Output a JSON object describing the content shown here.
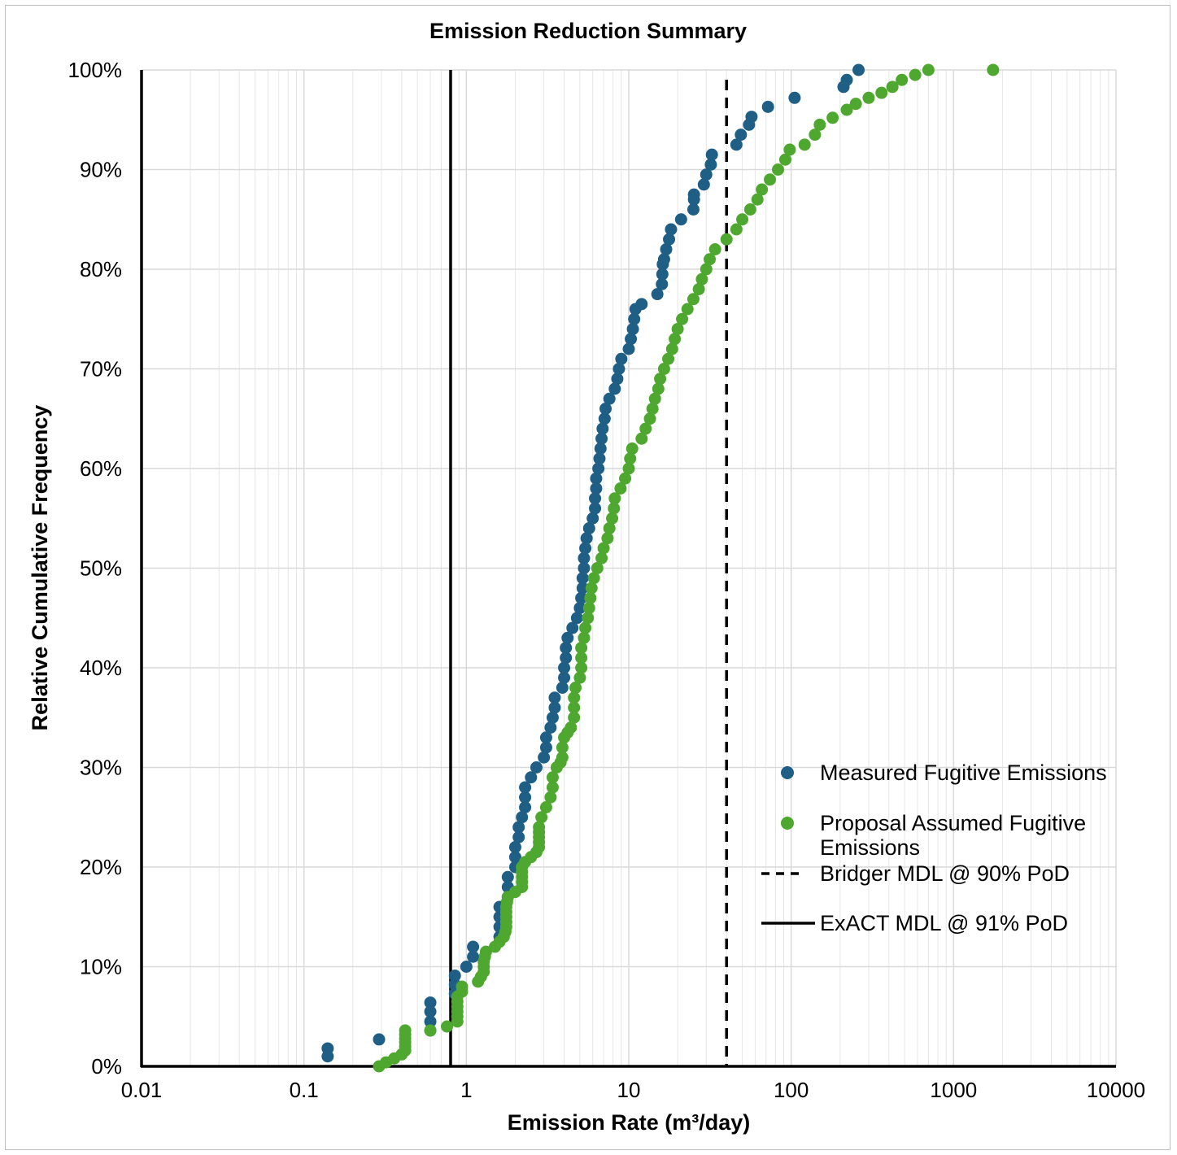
{
  "chart_data": {
    "type": "scatter",
    "title": "Emission Reduction Summary",
    "xlabel": "Emission Rate (m³/day)",
    "ylabel": "Relative Cumulative Frequency",
    "x_scale": "log",
    "xlim": [
      0.01,
      10000
    ],
    "ylim": [
      0,
      1
    ],
    "x_ticks": [
      "0.01",
      "0.1",
      "1",
      "10",
      "100",
      "1000",
      "10000"
    ],
    "y_ticks": [
      "0%",
      "10%",
      "20%",
      "30%",
      "40%",
      "50%",
      "60%",
      "70%",
      "80%",
      "90%",
      "100%"
    ],
    "grid": true,
    "legend": "right",
    "series": [
      {
        "name": "Measured Fugitive Emissions",
        "color": "#1f5f86",
        "points": [
          [
            0.14,
            0.01
          ],
          [
            0.14,
            0.018
          ],
          [
            0.29,
            0.027
          ],
          [
            0.6,
            0.036
          ],
          [
            0.6,
            0.045
          ],
          [
            0.6,
            0.055
          ],
          [
            0.6,
            0.064
          ],
          [
            0.85,
            0.073
          ],
          [
            0.85,
            0.082
          ],
          [
            0.85,
            0.091
          ],
          [
            1.0,
            0.1
          ],
          [
            1.1,
            0.11
          ],
          [
            1.1,
            0.12
          ],
          [
            1.6,
            0.13
          ],
          [
            1.6,
            0.14
          ],
          [
            1.6,
            0.15
          ],
          [
            1.6,
            0.16
          ],
          [
            1.8,
            0.17
          ],
          [
            1.8,
            0.18
          ],
          [
            1.8,
            0.19
          ],
          [
            2.0,
            0.2
          ],
          [
            2.0,
            0.21
          ],
          [
            2.0,
            0.22
          ],
          [
            2.1,
            0.23
          ],
          [
            2.1,
            0.24
          ],
          [
            2.2,
            0.25
          ],
          [
            2.3,
            0.26
          ],
          [
            2.3,
            0.27
          ],
          [
            2.3,
            0.28
          ],
          [
            2.5,
            0.29
          ],
          [
            2.7,
            0.3
          ],
          [
            3.0,
            0.31
          ],
          [
            3.1,
            0.32
          ],
          [
            3.1,
            0.33
          ],
          [
            3.3,
            0.34
          ],
          [
            3.4,
            0.35
          ],
          [
            3.5,
            0.36
          ],
          [
            3.5,
            0.37
          ],
          [
            3.9,
            0.38
          ],
          [
            4.0,
            0.39
          ],
          [
            4.0,
            0.4
          ],
          [
            4.1,
            0.41
          ],
          [
            4.1,
            0.42
          ],
          [
            4.2,
            0.43
          ],
          [
            4.5,
            0.44
          ],
          [
            4.8,
            0.45
          ],
          [
            5.0,
            0.46
          ],
          [
            5.1,
            0.47
          ],
          [
            5.2,
            0.48
          ],
          [
            5.2,
            0.49
          ],
          [
            5.3,
            0.5
          ],
          [
            5.3,
            0.51
          ],
          [
            5.4,
            0.52
          ],
          [
            5.5,
            0.53
          ],
          [
            5.7,
            0.54
          ],
          [
            6.0,
            0.55
          ],
          [
            6.2,
            0.56
          ],
          [
            6.2,
            0.57
          ],
          [
            6.3,
            0.58
          ],
          [
            6.3,
            0.59
          ],
          [
            6.5,
            0.6
          ],
          [
            6.6,
            0.61
          ],
          [
            6.7,
            0.62
          ],
          [
            6.8,
            0.63
          ],
          [
            6.9,
            0.64
          ],
          [
            7.1,
            0.65
          ],
          [
            7.2,
            0.66
          ],
          [
            7.6,
            0.67
          ],
          [
            8.2,
            0.68
          ],
          [
            8.5,
            0.69
          ],
          [
            8.7,
            0.7
          ],
          [
            9.0,
            0.71
          ],
          [
            10.0,
            0.72
          ],
          [
            10.3,
            0.73
          ],
          [
            10.6,
            0.74
          ],
          [
            10.8,
            0.75
          ],
          [
            11.0,
            0.76
          ],
          [
            12.0,
            0.765
          ],
          [
            15.0,
            0.775
          ],
          [
            16.0,
            0.785
          ],
          [
            16.1,
            0.795
          ],
          [
            16.2,
            0.805
          ],
          [
            16.5,
            0.81
          ],
          [
            17.0,
            0.82
          ],
          [
            17.7,
            0.83
          ],
          [
            18.2,
            0.84
          ],
          [
            21.0,
            0.85
          ],
          [
            25.0,
            0.86
          ],
          [
            25.2,
            0.87
          ],
          [
            25.2,
            0.875
          ],
          [
            29.0,
            0.885
          ],
          [
            30.0,
            0.895
          ],
          [
            32.0,
            0.905
          ],
          [
            32.5,
            0.915
          ],
          [
            46.0,
            0.925
          ],
          [
            49.0,
            0.935
          ],
          [
            55.0,
            0.945
          ],
          [
            57.0,
            0.953
          ],
          [
            72.0,
            0.963
          ],
          [
            105.0,
            0.972
          ],
          [
            210.0,
            0.983
          ],
          [
            220.0,
            0.99
          ],
          [
            260.0,
            1.0
          ]
        ]
      },
      {
        "name": "Proposal Assumed Fugitive Emissions",
        "color": "#4ea72e",
        "points": [
          [
            0.29,
            0.0
          ],
          [
            0.32,
            0.004
          ],
          [
            0.36,
            0.008
          ],
          [
            0.4,
            0.012
          ],
          [
            0.42,
            0.016
          ],
          [
            0.42,
            0.02
          ],
          [
            0.42,
            0.024
          ],
          [
            0.42,
            0.028
          ],
          [
            0.42,
            0.032
          ],
          [
            0.42,
            0.036
          ],
          [
            0.6,
            0.036
          ],
          [
            0.76,
            0.04
          ],
          [
            0.88,
            0.045
          ],
          [
            0.88,
            0.05
          ],
          [
            0.88,
            0.055
          ],
          [
            0.88,
            0.06
          ],
          [
            0.88,
            0.065
          ],
          [
            0.88,
            0.07
          ],
          [
            0.94,
            0.075
          ],
          [
            0.94,
            0.08
          ],
          [
            1.18,
            0.085
          ],
          [
            1.23,
            0.09
          ],
          [
            1.28,
            0.095
          ],
          [
            1.28,
            0.1
          ],
          [
            1.28,
            0.105
          ],
          [
            1.3,
            0.11
          ],
          [
            1.32,
            0.115
          ],
          [
            1.5,
            0.12
          ],
          [
            1.6,
            0.125
          ],
          [
            1.7,
            0.13
          ],
          [
            1.74,
            0.135
          ],
          [
            1.76,
            0.14
          ],
          [
            1.76,
            0.145
          ],
          [
            1.76,
            0.15
          ],
          [
            1.76,
            0.155
          ],
          [
            1.76,
            0.16
          ],
          [
            1.78,
            0.165
          ],
          [
            1.8,
            0.17
          ],
          [
            2.0,
            0.175
          ],
          [
            2.2,
            0.18
          ],
          [
            2.2,
            0.185
          ],
          [
            2.2,
            0.19
          ],
          [
            2.2,
            0.195
          ],
          [
            2.2,
            0.2
          ],
          [
            2.3,
            0.205
          ],
          [
            2.5,
            0.21
          ],
          [
            2.7,
            0.215
          ],
          [
            2.8,
            0.22
          ],
          [
            2.8,
            0.225
          ],
          [
            2.8,
            0.23
          ],
          [
            2.8,
            0.235
          ],
          [
            2.8,
            0.24
          ],
          [
            2.9,
            0.25
          ],
          [
            3.1,
            0.26
          ],
          [
            3.3,
            0.27
          ],
          [
            3.4,
            0.28
          ],
          [
            3.4,
            0.29
          ],
          [
            3.6,
            0.3
          ],
          [
            3.8,
            0.305
          ],
          [
            3.9,
            0.31
          ],
          [
            3.9,
            0.32
          ],
          [
            4.0,
            0.33
          ],
          [
            4.2,
            0.335
          ],
          [
            4.4,
            0.34
          ],
          [
            4.6,
            0.35
          ],
          [
            4.6,
            0.36
          ],
          [
            4.6,
            0.37
          ],
          [
            4.7,
            0.38
          ],
          [
            5.0,
            0.39
          ],
          [
            5.1,
            0.4
          ],
          [
            5.1,
            0.41
          ],
          [
            5.1,
            0.42
          ],
          [
            5.3,
            0.43
          ],
          [
            5.4,
            0.44
          ],
          [
            5.6,
            0.45
          ],
          [
            5.7,
            0.46
          ],
          [
            5.8,
            0.47
          ],
          [
            5.9,
            0.48
          ],
          [
            6.1,
            0.49
          ],
          [
            6.4,
            0.5
          ],
          [
            6.8,
            0.51
          ],
          [
            7.0,
            0.52
          ],
          [
            7.4,
            0.53
          ],
          [
            7.6,
            0.54
          ],
          [
            7.9,
            0.55
          ],
          [
            8.1,
            0.56
          ],
          [
            8.2,
            0.57
          ],
          [
            8.9,
            0.58
          ],
          [
            9.5,
            0.59
          ],
          [
            10.0,
            0.6
          ],
          [
            10.2,
            0.61
          ],
          [
            10.5,
            0.62
          ],
          [
            12.0,
            0.63
          ],
          [
            12.7,
            0.64
          ],
          [
            13.5,
            0.65
          ],
          [
            14.0,
            0.66
          ],
          [
            14.5,
            0.67
          ],
          [
            15.2,
            0.68
          ],
          [
            15.6,
            0.69
          ],
          [
            16.5,
            0.7
          ],
          [
            17.5,
            0.71
          ],
          [
            18.5,
            0.72
          ],
          [
            19.2,
            0.73
          ],
          [
            20.0,
            0.74
          ],
          [
            21.3,
            0.75
          ],
          [
            23.0,
            0.76
          ],
          [
            25.0,
            0.77
          ],
          [
            27.0,
            0.78
          ],
          [
            28.2,
            0.79
          ],
          [
            30.0,
            0.8
          ],
          [
            31.5,
            0.81
          ],
          [
            34.0,
            0.82
          ],
          [
            40.0,
            0.83
          ],
          [
            46.0,
            0.84
          ],
          [
            50.0,
            0.85
          ],
          [
            56.0,
            0.86
          ],
          [
            62.0,
            0.87
          ],
          [
            66.0,
            0.88
          ],
          [
            74.0,
            0.89
          ],
          [
            83.0,
            0.9
          ],
          [
            92.0,
            0.91
          ],
          [
            98.0,
            0.92
          ],
          [
            121.0,
            0.925
          ],
          [
            140.0,
            0.935
          ],
          [
            150.0,
            0.945
          ],
          [
            180.0,
            0.952
          ],
          [
            220.0,
            0.96
          ],
          [
            250.0,
            0.966
          ],
          [
            300.0,
            0.972
          ],
          [
            360.0,
            0.977
          ],
          [
            420.0,
            0.983
          ],
          [
            480.0,
            0.99
          ],
          [
            580.0,
            0.995
          ],
          [
            700.0,
            1.0
          ],
          [
            1750.0,
            1.0
          ]
        ]
      },
      {
        "name": "Bridger MDL @ 90% PoD",
        "color": "#000000",
        "style": "dashed-vertical",
        "x": 40
      },
      {
        "name": "ExACT MDL @ 91% PoD",
        "color": "#000000",
        "style": "solid-vertical",
        "x": 0.8
      }
    ]
  }
}
